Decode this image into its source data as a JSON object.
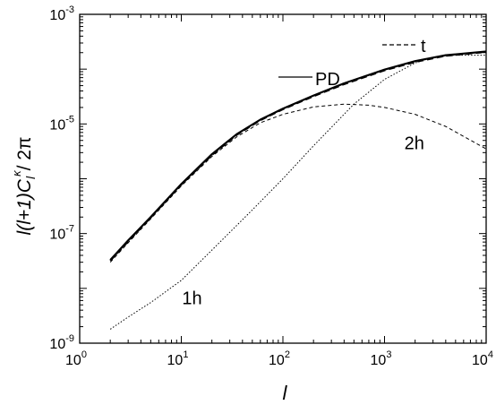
{
  "chart_data": {
    "type": "line",
    "xlabel": "l",
    "ylabel": "l(l+1)C",
    "ylabel_sub": "l",
    "ylabel_sup": "κ",
    "ylabel_tail": "/ 2π",
    "x_scale": "log",
    "y_scale": "log",
    "xlim": [
      1,
      10000
    ],
    "ylim": [
      1e-09,
      0.001
    ],
    "x_ticks": [
      {
        "value": 1,
        "base": "10",
        "exp": "0"
      },
      {
        "value": 10,
        "base": "10",
        "exp": "1"
      },
      {
        "value": 100,
        "base": "10",
        "exp": "2"
      },
      {
        "value": 1000,
        "base": "10",
        "exp": "3"
      },
      {
        "value": 10000,
        "base": "10",
        "exp": "4"
      }
    ],
    "y_ticks": [
      {
        "value": 1e-09,
        "base": "10",
        "exp": "-9"
      },
      {
        "value": 1e-07,
        "base": "10",
        "exp": "-7"
      },
      {
        "value": 1e-05,
        "base": "10",
        "exp": "-5"
      },
      {
        "value": 0.001,
        "base": "10",
        "exp": "-3"
      }
    ],
    "grid": false,
    "legend": [
      {
        "label": "t",
        "style": "dashed"
      },
      {
        "label": "PD",
        "style": "solid"
      }
    ],
    "annotations": [
      {
        "text": "2h",
        "x": 2000,
        "y": 4e-06
      },
      {
        "text": "1h",
        "x": 13,
        "y": 6e-09
      }
    ],
    "series": [
      {
        "name": "PD",
        "style": "solid",
        "x": [
          2,
          3,
          5,
          10,
          20,
          35,
          60,
          100,
          200,
          400,
          1000,
          2000,
          4000,
          10000
        ],
        "y": [
          3.3e-08,
          7.5e-08,
          2e-07,
          8e-07,
          2.8e-06,
          6.5e-06,
          1.2e-05,
          1.9e-05,
          3.3e-05,
          5.5e-05,
          9.8e-05,
          0.00014,
          0.00018,
          0.00021
        ]
      },
      {
        "name": "t",
        "style": "dashed",
        "x": [
          2,
          3,
          5,
          10,
          20,
          35,
          60,
          100,
          200,
          400,
          1000,
          2000,
          4000,
          10000
        ],
        "y": [
          3.2e-08,
          7.2e-08,
          1.95e-07,
          7.8e-07,
          2.7e-06,
          6.3e-06,
          1.17e-05,
          1.85e-05,
          3.2e-05,
          5.3e-05,
          9.5e-05,
          0.000135,
          0.000175,
          0.000205
        ]
      },
      {
        "name": "2h",
        "style": "dashed-thin",
        "x": [
          2,
          3,
          5,
          10,
          20,
          35,
          60,
          100,
          200,
          400,
          700,
          1000,
          2000,
          4000,
          10000
        ],
        "y": [
          3e-08,
          6.8e-08,
          1.85e-07,
          7.4e-07,
          2.55e-06,
          5.8e-06,
          1.05e-05,
          1.5e-05,
          2.05e-05,
          2.3e-05,
          2.2e-05,
          2e-05,
          1.5e-05,
          9e-06,
          3.5e-06
        ]
      },
      {
        "name": "1h",
        "style": "dotted",
        "x": [
          2,
          3,
          5,
          10,
          20,
          50,
          100,
          200,
          500,
          1000,
          2000,
          3000,
          5000,
          10000
        ],
        "y": [
          1.8e-09,
          3e-09,
          5.5e-09,
          1.4e-08,
          5e-08,
          2.7e-07,
          1e-06,
          4e-06,
          2.3e-05,
          6.5e-05,
          0.00013,
          0.000165,
          0.00018,
          0.00018
        ]
      }
    ]
  }
}
